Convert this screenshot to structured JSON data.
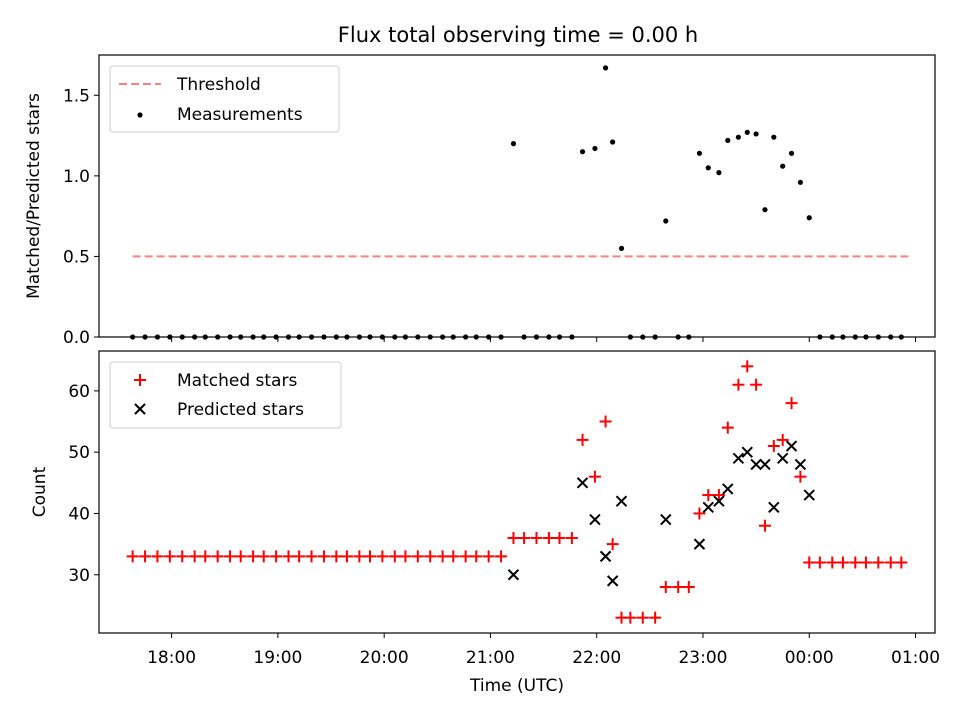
{
  "title": "Flux total observing time = 0.00 h",
  "chart_data": [
    {
      "type": "scatter",
      "ylabel": "Matched/Predicted stars",
      "ylim": [
        0,
        1.75
      ],
      "xlim": [
        "17:19",
        "01:11"
      ],
      "yticks": [
        "0.0",
        "0.5",
        "1.0",
        "1.5"
      ],
      "legend_position": "upper-left",
      "threshold": {
        "name": "Threshold",
        "value": 0.5,
        "x_start": "17:38",
        "x_end": "00:56",
        "color": "#ff7f7f"
      },
      "series": [
        {
          "name": "Measurements",
          "color": "#000000",
          "points": [
            [
              "17:38",
              0
            ],
            [
              "17:45",
              0
            ],
            [
              "17:52",
              0
            ],
            [
              "17:59",
              0
            ],
            [
              "18:06",
              0
            ],
            [
              "18:13",
              0
            ],
            [
              "18:19",
              0
            ],
            [
              "18:26",
              0
            ],
            [
              "18:33",
              0
            ],
            [
              "18:39",
              0
            ],
            [
              "18:46",
              0
            ],
            [
              "18:52",
              0
            ],
            [
              "18:59",
              0
            ],
            [
              "19:06",
              0
            ],
            [
              "19:12",
              0
            ],
            [
              "19:19",
              0
            ],
            [
              "19:26",
              0
            ],
            [
              "19:33",
              0
            ],
            [
              "19:39",
              0
            ],
            [
              "19:46",
              0
            ],
            [
              "19:52",
              0
            ],
            [
              "19:59",
              0
            ],
            [
              "20:06",
              0
            ],
            [
              "20:12",
              0
            ],
            [
              "20:19",
              0
            ],
            [
              "20:26",
              0
            ],
            [
              "20:33",
              0
            ],
            [
              "20:39",
              0
            ],
            [
              "20:46",
              0
            ],
            [
              "20:52",
              0
            ],
            [
              "20:59",
              0
            ],
            [
              "21:06",
              0
            ],
            [
              "21:13",
              1.2
            ],
            [
              "21:19",
              0
            ],
            [
              "21:26",
              0
            ],
            [
              "21:33",
              0
            ],
            [
              "21:39",
              0
            ],
            [
              "21:46",
              0
            ],
            [
              "21:52",
              1.15
            ],
            [
              "21:59",
              1.17
            ],
            [
              "22:05",
              1.67
            ],
            [
              "22:09",
              1.21
            ],
            [
              "22:14",
              0.55
            ],
            [
              "22:19",
              0
            ],
            [
              "22:26",
              0
            ],
            [
              "22:33",
              0
            ],
            [
              "22:39",
              0.72
            ],
            [
              "22:46",
              0
            ],
            [
              "22:52",
              0
            ],
            [
              "22:58",
              1.14
            ],
            [
              "23:03",
              1.05
            ],
            [
              "23:09",
              1.02
            ],
            [
              "23:14",
              1.22
            ],
            [
              "23:20",
              1.24
            ],
            [
              "23:25",
              1.27
            ],
            [
              "23:30",
              1.26
            ],
            [
              "23:35",
              0.79
            ],
            [
              "23:40",
              1.24
            ],
            [
              "23:45",
              1.06
            ],
            [
              "23:50",
              1.14
            ],
            [
              "23:55",
              0.96
            ],
            [
              "00:00",
              0.74
            ],
            [
              "00:06",
              0
            ],
            [
              "00:13",
              0
            ],
            [
              "00:19",
              0
            ],
            [
              "00:26",
              0
            ],
            [
              "00:32",
              0
            ],
            [
              "00:39",
              0
            ],
            [
              "00:46",
              0
            ],
            [
              "00:52",
              0
            ]
          ]
        }
      ]
    },
    {
      "type": "scatter",
      "xlabel": "Time (UTC)",
      "ylabel": "Count",
      "ylim": [
        20.5,
        66.5
      ],
      "xlim": [
        "17:19",
        "01:11"
      ],
      "xticks": [
        "18:00",
        "19:00",
        "20:00",
        "21:00",
        "22:00",
        "23:00",
        "00:00",
        "01:00"
      ],
      "yticks": [
        "30",
        "40",
        "50",
        "60"
      ],
      "legend_position": "upper-left",
      "series": [
        {
          "name": "Matched stars",
          "marker": "plus",
          "color": "#ff0000",
          "points": [
            [
              "17:38",
              33
            ],
            [
              "17:45",
              33
            ],
            [
              "17:52",
              33
            ],
            [
              "17:59",
              33
            ],
            [
              "18:06",
              33
            ],
            [
              "18:13",
              33
            ],
            [
              "18:19",
              33
            ],
            [
              "18:26",
              33
            ],
            [
              "18:33",
              33
            ],
            [
              "18:39",
              33
            ],
            [
              "18:46",
              33
            ],
            [
              "18:52",
              33
            ],
            [
              "18:59",
              33
            ],
            [
              "19:06",
              33
            ],
            [
              "19:12",
              33
            ],
            [
              "19:19",
              33
            ],
            [
              "19:26",
              33
            ],
            [
              "19:33",
              33
            ],
            [
              "19:39",
              33
            ],
            [
              "19:46",
              33
            ],
            [
              "19:52",
              33
            ],
            [
              "19:59",
              33
            ],
            [
              "20:06",
              33
            ],
            [
              "20:12",
              33
            ],
            [
              "20:19",
              33
            ],
            [
              "20:26",
              33
            ],
            [
              "20:33",
              33
            ],
            [
              "20:39",
              33
            ],
            [
              "20:46",
              33
            ],
            [
              "20:52",
              33
            ],
            [
              "20:59",
              33
            ],
            [
              "21:06",
              33
            ],
            [
              "21:13",
              36
            ],
            [
              "21:19",
              36
            ],
            [
              "21:26",
              36
            ],
            [
              "21:33",
              36
            ],
            [
              "21:39",
              36
            ],
            [
              "21:46",
              36
            ],
            [
              "21:52",
              52
            ],
            [
              "21:59",
              46
            ],
            [
              "22:05",
              55
            ],
            [
              "22:09",
              35
            ],
            [
              "22:14",
              23
            ],
            [
              "22:19",
              23
            ],
            [
              "22:26",
              23
            ],
            [
              "22:33",
              23
            ],
            [
              "22:39",
              28
            ],
            [
              "22:46",
              28
            ],
            [
              "22:52",
              28
            ],
            [
              "22:58",
              40
            ],
            [
              "23:03",
              43
            ],
            [
              "23:09",
              43
            ],
            [
              "23:14",
              54
            ],
            [
              "23:20",
              61
            ],
            [
              "23:25",
              64
            ],
            [
              "23:30",
              61
            ],
            [
              "23:35",
              38
            ],
            [
              "23:40",
              51
            ],
            [
              "23:45",
              52
            ],
            [
              "23:50",
              58
            ],
            [
              "23:55",
              46
            ],
            [
              "00:00",
              32
            ],
            [
              "00:06",
              32
            ],
            [
              "00:13",
              32
            ],
            [
              "00:19",
              32
            ],
            [
              "00:26",
              32
            ],
            [
              "00:32",
              32
            ],
            [
              "00:39",
              32
            ],
            [
              "00:46",
              32
            ],
            [
              "00:52",
              32
            ]
          ]
        },
        {
          "name": "Predicted stars",
          "marker": "x",
          "color": "#000000",
          "points": [
            [
              "21:13",
              30
            ],
            [
              "21:52",
              45
            ],
            [
              "21:59",
              39
            ],
            [
              "22:05",
              33
            ],
            [
              "22:09",
              29
            ],
            [
              "22:14",
              42
            ],
            [
              "22:39",
              39
            ],
            [
              "22:58",
              35
            ],
            [
              "23:03",
              41
            ],
            [
              "23:09",
              42
            ],
            [
              "23:14",
              44
            ],
            [
              "23:20",
              49
            ],
            [
              "23:25",
              50
            ],
            [
              "23:30",
              48
            ],
            [
              "23:35",
              48
            ],
            [
              "23:40",
              41
            ],
            [
              "23:45",
              49
            ],
            [
              "23:50",
              51
            ],
            [
              "23:55",
              48
            ],
            [
              "00:00",
              43
            ]
          ]
        }
      ]
    }
  ]
}
